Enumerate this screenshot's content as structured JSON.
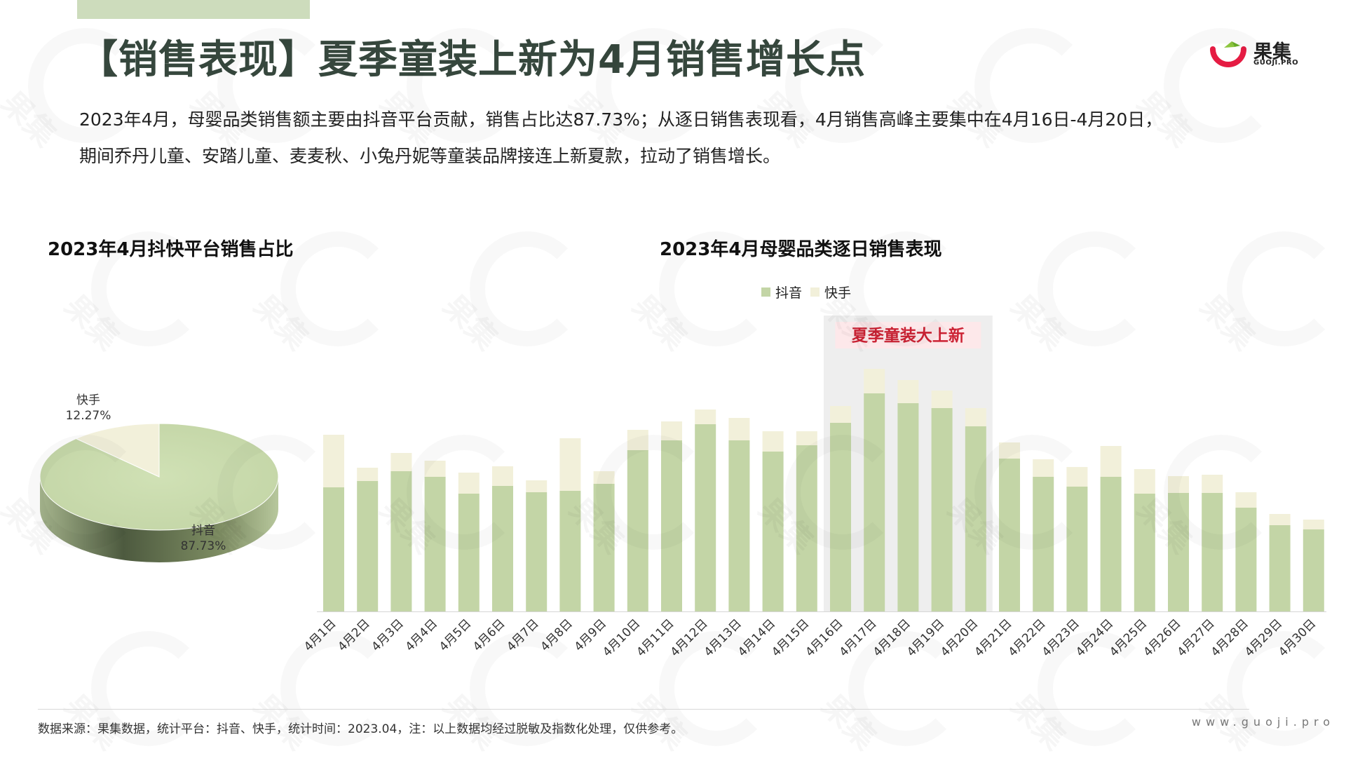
{
  "header": {
    "title": "【销售表现】夏季童装上新为4月销售增长点",
    "logo_text": "果集",
    "logo_sub": "GUOJI.PRO"
  },
  "summary_lines": [
    "2023年4月，母婴品类销售额主要由抖音平台贡献，销售占比达87.73%；从逐日销售表现看，4月销售高峰主要集中在4月16日-4月20日，",
    "期间乔丹儿童、安踏儿童、麦麦秋、小兔丹妮等童装品牌接连上新夏款，拉动了销售增长。"
  ],
  "colors": {
    "douyin": "#c3d5a6",
    "kuaishou": "#f2f0da",
    "highlight": "#eeeeee",
    "title": "#36473d",
    "badge_bg": "#fde8ea",
    "badge_text": "#cc2234"
  },
  "chart_data": [
    {
      "type": "pie",
      "title": "2023年4月抖快平台销售占比",
      "slices": [
        {
          "label": "抖音",
          "value": 87.73,
          "display": "87.73%"
        },
        {
          "label": "快手",
          "value": 12.27,
          "display": "12.27%"
        }
      ]
    },
    {
      "type": "bar",
      "stacked": true,
      "title": "2023年4月母婴品类逐日销售表现",
      "legend": [
        "抖音",
        "快手"
      ],
      "legend_position": "top-center",
      "grid": false,
      "categories": [
        "4月1日",
        "4月2日",
        "4月3日",
        "4月4日",
        "4月5日",
        "4月6日",
        "4月7日",
        "4月8日",
        "4月9日",
        "4月10日",
        "4月11日",
        "4月12日",
        "4月13日",
        "4月14日",
        "4月15日",
        "4月16日",
        "4月17日",
        "4月18日",
        "4月19日",
        "4月20日",
        "4月21日",
        "4月22日",
        "4月23日",
        "4月24日",
        "4月25日",
        "4月26日",
        "4月27日",
        "4月28日",
        "4月29日",
        "4月30日"
      ],
      "series": [
        {
          "name": "抖音",
          "values": [
            177,
            186,
            200,
            192,
            168,
            179,
            170,
            172,
            182,
            230,
            244,
            267,
            244,
            228,
            237,
            269,
            311,
            297,
            290,
            264,
            218,
            192,
            178,
            192,
            168,
            169,
            169,
            148,
            123,
            117
          ]
        },
        {
          "name": "快手",
          "values": [
            75,
            19,
            26,
            23,
            30,
            28,
            17,
            75,
            18,
            29,
            27,
            21,
            32,
            29,
            20,
            24,
            35,
            33,
            25,
            26,
            23,
            25,
            28,
            44,
            35,
            24,
            26,
            22,
            16,
            14
          ]
        }
      ],
      "annotation": {
        "text": "夏季童装大上新",
        "start_index": 15,
        "end_index": 19
      }
    }
  ],
  "footer": {
    "source": "数据来源：果集数据，统计平台：抖音、快手，统计时间：2023.04，注：以上数据均经过脱敏及指数化处理，仅供参考。",
    "url": "www.guoji.pro"
  }
}
